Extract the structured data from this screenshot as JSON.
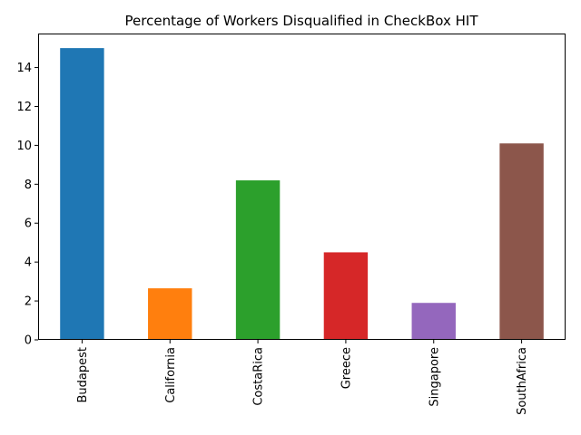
{
  "chart_data": {
    "type": "bar",
    "title": "Percentage of Workers Disqualified in CheckBox HIT",
    "xlabel": "",
    "ylabel": "",
    "categories": [
      "Budapest",
      "California",
      "CostaRica",
      "Greece",
      "Singapore",
      "SouthAfrica"
    ],
    "values": [
      15.0,
      2.65,
      8.2,
      4.5,
      1.9,
      10.1
    ],
    "colors": [
      "#1f77b4",
      "#ff7f0e",
      "#2ca02c",
      "#d62728",
      "#9467bd",
      "#8c564b"
    ],
    "ylim": [
      0,
      15.75
    ],
    "yticks": [
      0,
      2,
      4,
      6,
      8,
      10,
      12,
      14
    ],
    "ytick_labels": [
      "0",
      "2",
      "4",
      "6",
      "8",
      "10",
      "12",
      "14"
    ],
    "grid": false,
    "legend": "none"
  }
}
